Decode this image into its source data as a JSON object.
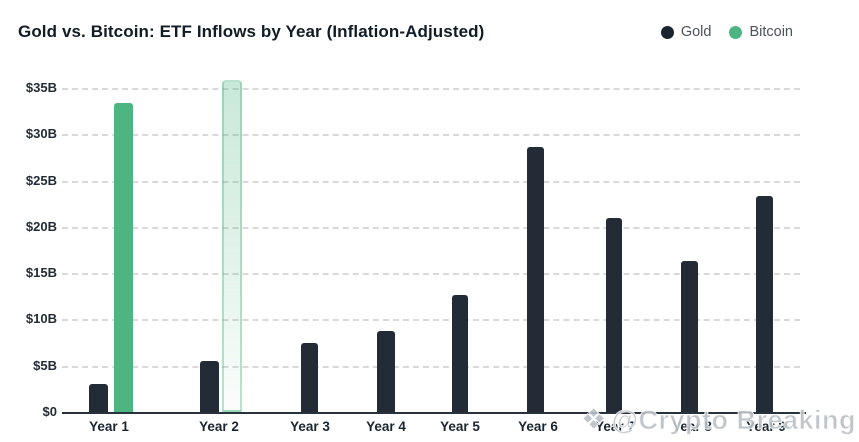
{
  "title": "Gold vs. Bitcoin: ETF Inflows by Year (Inflation-Adjusted)",
  "legend": {
    "items": [
      {
        "label": "Gold",
        "color": "#1b242e"
      },
      {
        "label": "Bitcoin",
        "color": "#4db581"
      }
    ]
  },
  "watermark": {
    "icon": "❖",
    "text": "@Crypto Breaking"
  },
  "colors": {
    "gold_bar": "#232c36",
    "bitcoin_bar": "#4db581",
    "gridline": "#d9d9d9",
    "axis": "#28323c"
  },
  "chart_data": {
    "type": "bar",
    "title": "Gold vs. Bitcoin: ETF Inflows by Year (Inflation-Adjusted)",
    "categories": [
      "Year 1",
      "Year 2",
      "Year 3",
      "Year 4",
      "Year 5",
      "Year 6",
      "Year 7",
      "Year 8",
      "Year 9"
    ],
    "series": [
      {
        "name": "Gold",
        "color": "#232c36",
        "values": [
          3.0,
          5.5,
          7.5,
          8.7,
          12.6,
          28.6,
          21.0,
          16.3,
          23.3
        ]
      },
      {
        "name": "Bitcoin",
        "color": "#4db581",
        "values": [
          33.4,
          35.8,
          null,
          null,
          null,
          null,
          null,
          null,
          null
        ],
        "projected_indices": [
          1
        ]
      }
    ],
    "unit": "billions USD",
    "xlabel": "",
    "ylabel": "",
    "ylim": [
      0,
      37
    ],
    "y_ticks": [
      {
        "label": "$35B",
        "value": 35
      },
      {
        "label": "$30B",
        "value": 30
      },
      {
        "label": "$25B",
        "value": 25
      },
      {
        "label": "$20B",
        "value": 20
      },
      {
        "label": "$15B",
        "value": 15
      },
      {
        "label": "$10B",
        "value": 10
      },
      {
        "label": "$5B",
        "value": 5
      },
      {
        "label": "$0",
        "value": 0
      }
    ],
    "grid": "horizontal-dashed",
    "legend_position": "top-right"
  }
}
